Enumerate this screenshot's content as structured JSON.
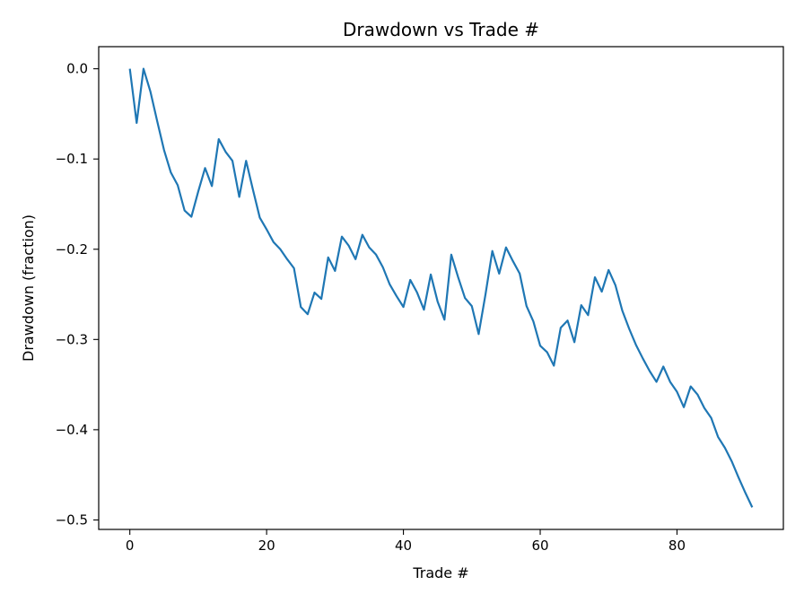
{
  "chart_data": {
    "type": "line",
    "title": "Drawdown vs Trade #",
    "xlabel": "Trade #",
    "ylabel": "Drawdown (fraction)",
    "xlim": [
      -4.55,
      95.55
    ],
    "ylim": [
      -0.5105,
      0.0245
    ],
    "grid": false,
    "x_ticks": [
      0,
      20,
      40,
      60,
      80
    ],
    "x_tick_labels": [
      "0",
      "20",
      "40",
      "60",
      "80"
    ],
    "y_ticks": [
      0.0,
      -0.1,
      -0.2,
      -0.3,
      -0.4,
      -0.5
    ],
    "y_tick_labels": [
      "0.0",
      "−0.1",
      "−0.2",
      "−0.3",
      "−0.4",
      "−0.5"
    ],
    "series": [
      {
        "color": "#1f77b4",
        "x": [
          0,
          1,
          2,
          3,
          4,
          5,
          6,
          7,
          8,
          9,
          10,
          11,
          12,
          13,
          14,
          15,
          16,
          17,
          18,
          19,
          20,
          21,
          22,
          23,
          24,
          25,
          26,
          27,
          28,
          29,
          30,
          31,
          32,
          33,
          34,
          35,
          36,
          37,
          38,
          39,
          40,
          41,
          42,
          43,
          44,
          45,
          46,
          47,
          48,
          49,
          50,
          51,
          52,
          53,
          54,
          55,
          56,
          57,
          58,
          59,
          60,
          61,
          62,
          63,
          64,
          65,
          66,
          67,
          68,
          69,
          70,
          71,
          72,
          73,
          74,
          75,
          76,
          77,
          78,
          79,
          80,
          81,
          82,
          83,
          84,
          85,
          86,
          87,
          88,
          89,
          90,
          91
        ],
        "values": [
          0.0,
          -0.06,
          0.0,
          -0.025,
          -0.058,
          -0.09,
          -0.115,
          -0.129,
          -0.157,
          -0.164,
          -0.136,
          -0.11,
          -0.13,
          -0.078,
          -0.092,
          -0.102,
          -0.142,
          -0.102,
          -0.134,
          -0.165,
          -0.178,
          -0.192,
          -0.2,
          -0.211,
          -0.221,
          -0.264,
          -0.272,
          -0.248,
          -0.255,
          -0.209,
          -0.224,
          -0.186,
          -0.196,
          -0.211,
          -0.184,
          -0.198,
          -0.206,
          -0.22,
          -0.239,
          -0.252,
          -0.264,
          -0.234,
          -0.248,
          -0.267,
          -0.228,
          -0.258,
          -0.278,
          -0.206,
          -0.231,
          -0.254,
          -0.263,
          -0.294,
          -0.25,
          -0.202,
          -0.227,
          -0.198,
          -0.213,
          -0.227,
          -0.263,
          -0.28,
          -0.307,
          -0.314,
          -0.329,
          -0.287,
          -0.279,
          -0.303,
          -0.262,
          -0.273,
          -0.231,
          -0.247,
          -0.223,
          -0.24,
          -0.268,
          -0.288,
          -0.306,
          -0.321,
          -0.335,
          -0.347,
          -0.33,
          -0.347,
          -0.358,
          -0.375,
          -0.352,
          -0.361,
          -0.376,
          -0.387,
          -0.408,
          -0.42,
          -0.435,
          -0.453,
          -0.47,
          -0.486
        ]
      }
    ]
  }
}
